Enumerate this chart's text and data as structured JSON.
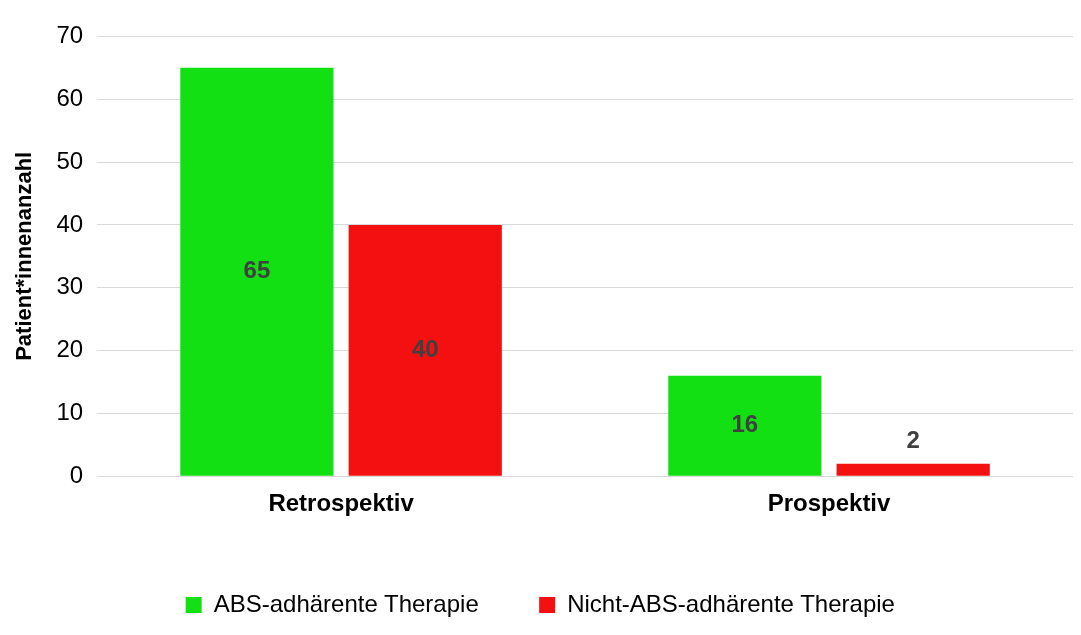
{
  "chart_data": {
    "type": "bar",
    "ylabel": "Patient*innenanzahl",
    "categories": [
      "Retrospektiv",
      "Prospektiv"
    ],
    "series": [
      {
        "name": "ABS-adhärente Therapie",
        "color": "#12e012",
        "values": [
          65,
          16
        ]
      },
      {
        "name": "Nicht-ABS-adhärente Therapie",
        "color": "#f41010",
        "values": [
          40,
          2
        ]
      }
    ],
    "ylim": [
      0,
      70
    ],
    "yticks": [
      0,
      10,
      20,
      30,
      40,
      50,
      60,
      70
    ],
    "grid": "y",
    "legend": "bottom",
    "data_labels": true
  }
}
